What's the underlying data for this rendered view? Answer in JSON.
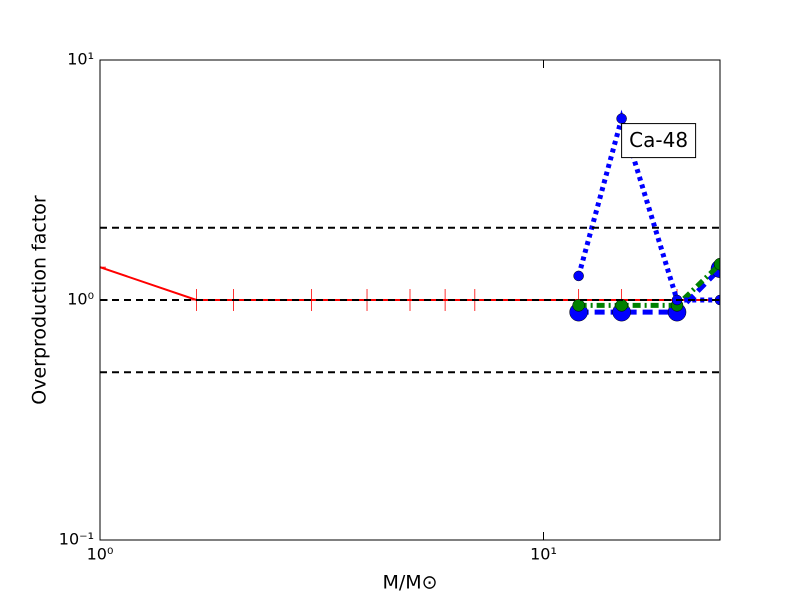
{
  "chart_data": {
    "type": "line",
    "xlabel": "M/M⊙",
    "ylabel": "Overproduction factor",
    "xscale": "log",
    "yscale": "log",
    "xlim": [
      1,
      25
    ],
    "ylim": [
      0.1,
      10
    ],
    "xticks": [
      {
        "value": 1,
        "label": "10⁰"
      },
      {
        "value": 10,
        "label": "10¹"
      }
    ],
    "yticks": [
      {
        "value": 0.1,
        "label": "10⁻¹"
      },
      {
        "value": 1,
        "label": "10⁰"
      },
      {
        "value": 10,
        "label": "10¹"
      }
    ],
    "reference_lines": [
      2,
      1,
      0.5
    ],
    "annotation": "Ca-48",
    "series": [
      {
        "color": "#ff0000",
        "style": "solid",
        "marker": "plus",
        "x": [
          1,
          1.65,
          2,
          3,
          4,
          5,
          6,
          7,
          12,
          15,
          20,
          25
        ],
        "values": [
          1.37,
          1,
          1,
          1,
          1,
          1,
          1,
          1,
          1,
          1,
          1,
          1
        ]
      },
      {
        "color": "#0000ff",
        "style": "dashed",
        "marker": "large-circle",
        "x": [
          12,
          15,
          20,
          25
        ],
        "values": [
          0.89,
          0.89,
          0.89,
          1.35
        ]
      },
      {
        "color": "#008000",
        "style": "dashdot",
        "marker": "circle",
        "x": [
          12,
          15,
          20,
          25
        ],
        "values": [
          0.95,
          0.95,
          0.95,
          1.41
        ]
      },
      {
        "color": "#0000ff",
        "style": "dotted",
        "marker": "small-circle",
        "x": [
          12,
          15,
          20,
          25
        ],
        "values": [
          1.26,
          5.7,
          1,
          1
        ]
      }
    ]
  }
}
